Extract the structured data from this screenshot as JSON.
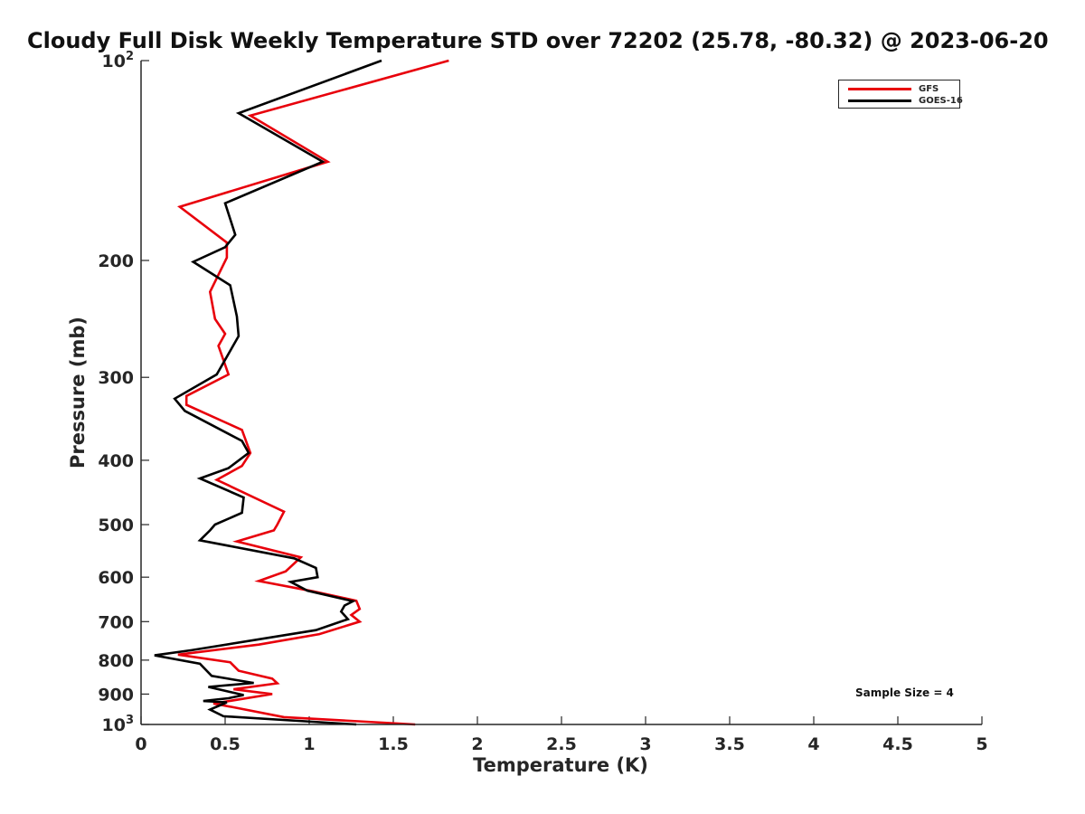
{
  "chart_data": {
    "type": "line",
    "title": "Cloudy Full Disk Weekly Temperature STD over 72202 (25.78, -80.32) @ 2023-06-20",
    "xlabel": "Temperature (K)",
    "ylabel": "Pressure (mb)",
    "xlim": [
      0,
      5
    ],
    "ylim": [
      100,
      1000
    ],
    "yscale": "log",
    "yreversed": true,
    "xticks": [
      "0",
      "0.5",
      "1",
      "1.5",
      "2",
      "2.5",
      "3",
      "3.5",
      "4",
      "4.5",
      "5"
    ],
    "yticks": [
      {
        "value": 100,
        "label": "10",
        "sup": "2"
      },
      {
        "value": 200,
        "label": "200",
        "sup": ""
      },
      {
        "value": 300,
        "label": "300",
        "sup": ""
      },
      {
        "value": 400,
        "label": "400",
        "sup": ""
      },
      {
        "value": 500,
        "label": "500",
        "sup": ""
      },
      {
        "value": 600,
        "label": "600",
        "sup": ""
      },
      {
        "value": 700,
        "label": "700",
        "sup": ""
      },
      {
        "value": 800,
        "label": "800",
        "sup": ""
      },
      {
        "value": 900,
        "label": "900",
        "sup": ""
      },
      {
        "value": 1000,
        "label": "10",
        "sup": "3"
      }
    ],
    "grid": false,
    "legend_position": "top-right",
    "series": [
      {
        "name": "GFS",
        "color": "#e8000b",
        "points": [
          [
            1.83,
            100
          ],
          [
            0.65,
            121
          ],
          [
            1.11,
            142
          ],
          [
            0.23,
            166
          ],
          [
            0.51,
            188
          ],
          [
            0.51,
            198
          ],
          [
            0.41,
            223
          ],
          [
            0.44,
            245
          ],
          [
            0.5,
            258
          ],
          [
            0.46,
            269
          ],
          [
            0.52,
            297
          ],
          [
            0.27,
            320
          ],
          [
            0.27,
            330
          ],
          [
            0.6,
            360
          ],
          [
            0.65,
            390
          ],
          [
            0.6,
            408
          ],
          [
            0.45,
            428
          ],
          [
            0.85,
            478
          ],
          [
            0.81,
            500
          ],
          [
            0.79,
            510
          ],
          [
            0.57,
            530
          ],
          [
            0.95,
            560
          ],
          [
            0.86,
            588
          ],
          [
            0.7,
            608
          ],
          [
            1.02,
            630
          ],
          [
            1.28,
            651
          ],
          [
            1.3,
            670
          ],
          [
            1.25,
            684
          ],
          [
            1.3,
            700
          ],
          [
            1.06,
            731
          ],
          [
            0.7,
            758
          ],
          [
            0.22,
            785
          ],
          [
            0.53,
            806
          ],
          [
            0.58,
            830
          ],
          [
            0.78,
            853
          ],
          [
            0.81,
            867
          ],
          [
            0.55,
            885
          ],
          [
            0.78,
            900
          ],
          [
            0.43,
            930
          ],
          [
            0.55,
            942
          ],
          [
            0.85,
            975
          ],
          [
            1.63,
            1000
          ]
        ]
      },
      {
        "name": "GOES-16",
        "color": "#000000",
        "points": [
          [
            1.43,
            100
          ],
          [
            0.58,
            120
          ],
          [
            1.08,
            142
          ],
          [
            0.5,
            164
          ],
          [
            0.56,
            183
          ],
          [
            0.5,
            191
          ],
          [
            0.31,
            201
          ],
          [
            0.53,
            218
          ],
          [
            0.57,
            243
          ],
          [
            0.58,
            260
          ],
          [
            0.45,
            297
          ],
          [
            0.2,
            323
          ],
          [
            0.26,
            337
          ],
          [
            0.6,
            374
          ],
          [
            0.64,
            390
          ],
          [
            0.52,
            411
          ],
          [
            0.35,
            426
          ],
          [
            0.61,
            455
          ],
          [
            0.6,
            480
          ],
          [
            0.44,
            500
          ],
          [
            0.41,
            510
          ],
          [
            0.35,
            528
          ],
          [
            0.91,
            562
          ],
          [
            1.04,
            581
          ],
          [
            1.05,
            600
          ],
          [
            0.89,
            610
          ],
          [
            0.99,
            629
          ],
          [
            1.26,
            652
          ],
          [
            1.21,
            662
          ],
          [
            1.19,
            676
          ],
          [
            1.23,
            694
          ],
          [
            1.04,
            721
          ],
          [
            0.3,
            773
          ],
          [
            0.08,
            787
          ],
          [
            0.35,
            810
          ],
          [
            0.42,
            845
          ],
          [
            0.67,
            866
          ],
          [
            0.4,
            878
          ],
          [
            0.61,
            903
          ],
          [
            0.52,
            913
          ],
          [
            0.37,
            922
          ],
          [
            0.51,
            926
          ],
          [
            0.41,
            950
          ],
          [
            0.49,
            972
          ],
          [
            1.28,
            1000
          ]
        ]
      }
    ],
    "annotation": "Sample Size = 4"
  }
}
